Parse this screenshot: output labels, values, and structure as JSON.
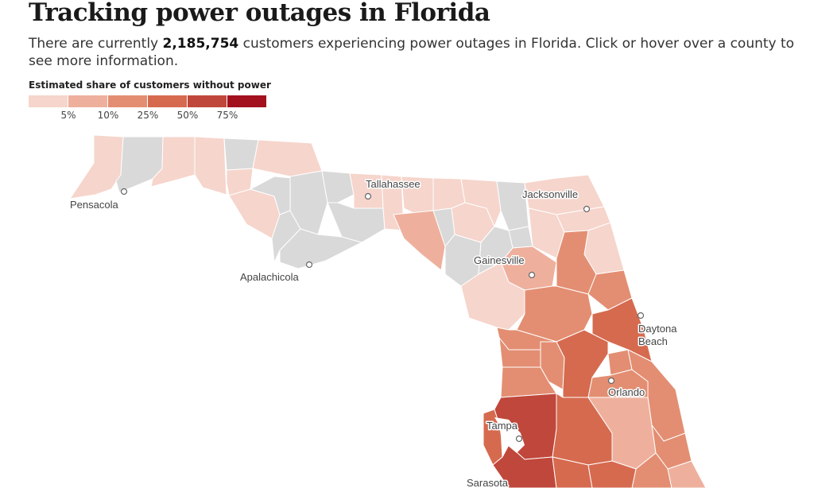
{
  "headline": "Tracking power outages in Florida",
  "dek": {
    "before": "There are currently ",
    "count": "2,185,754",
    "after": " customers experiencing power outages in Florida. Click or hover over a county to see more information."
  },
  "legend": {
    "title": "Estimated share of customers without power",
    "colors": [
      "#f6d5cc",
      "#eeb09d",
      "#e38e72",
      "#d66a4f",
      "#c0473b",
      "#a3111f"
    ],
    "ticks": [
      "5%",
      "10%",
      "25%",
      "50%",
      "75%"
    ]
  },
  "colors": {
    "no_data": "#d9d9d9",
    "border": "#ffffff",
    "ocean": "#ffffff"
  },
  "cities": [
    {
      "name": "Pensacola"
    },
    {
      "name": "Tallahassee"
    },
    {
      "name": "Jacksonville"
    },
    {
      "name": "Apalachicola"
    },
    {
      "name": "Gainesville"
    },
    {
      "name": "Daytona",
      "name2": "Beach"
    },
    {
      "name": "Orlando"
    },
    {
      "name": "Tampa"
    },
    {
      "name": "Sarasota"
    }
  ]
}
